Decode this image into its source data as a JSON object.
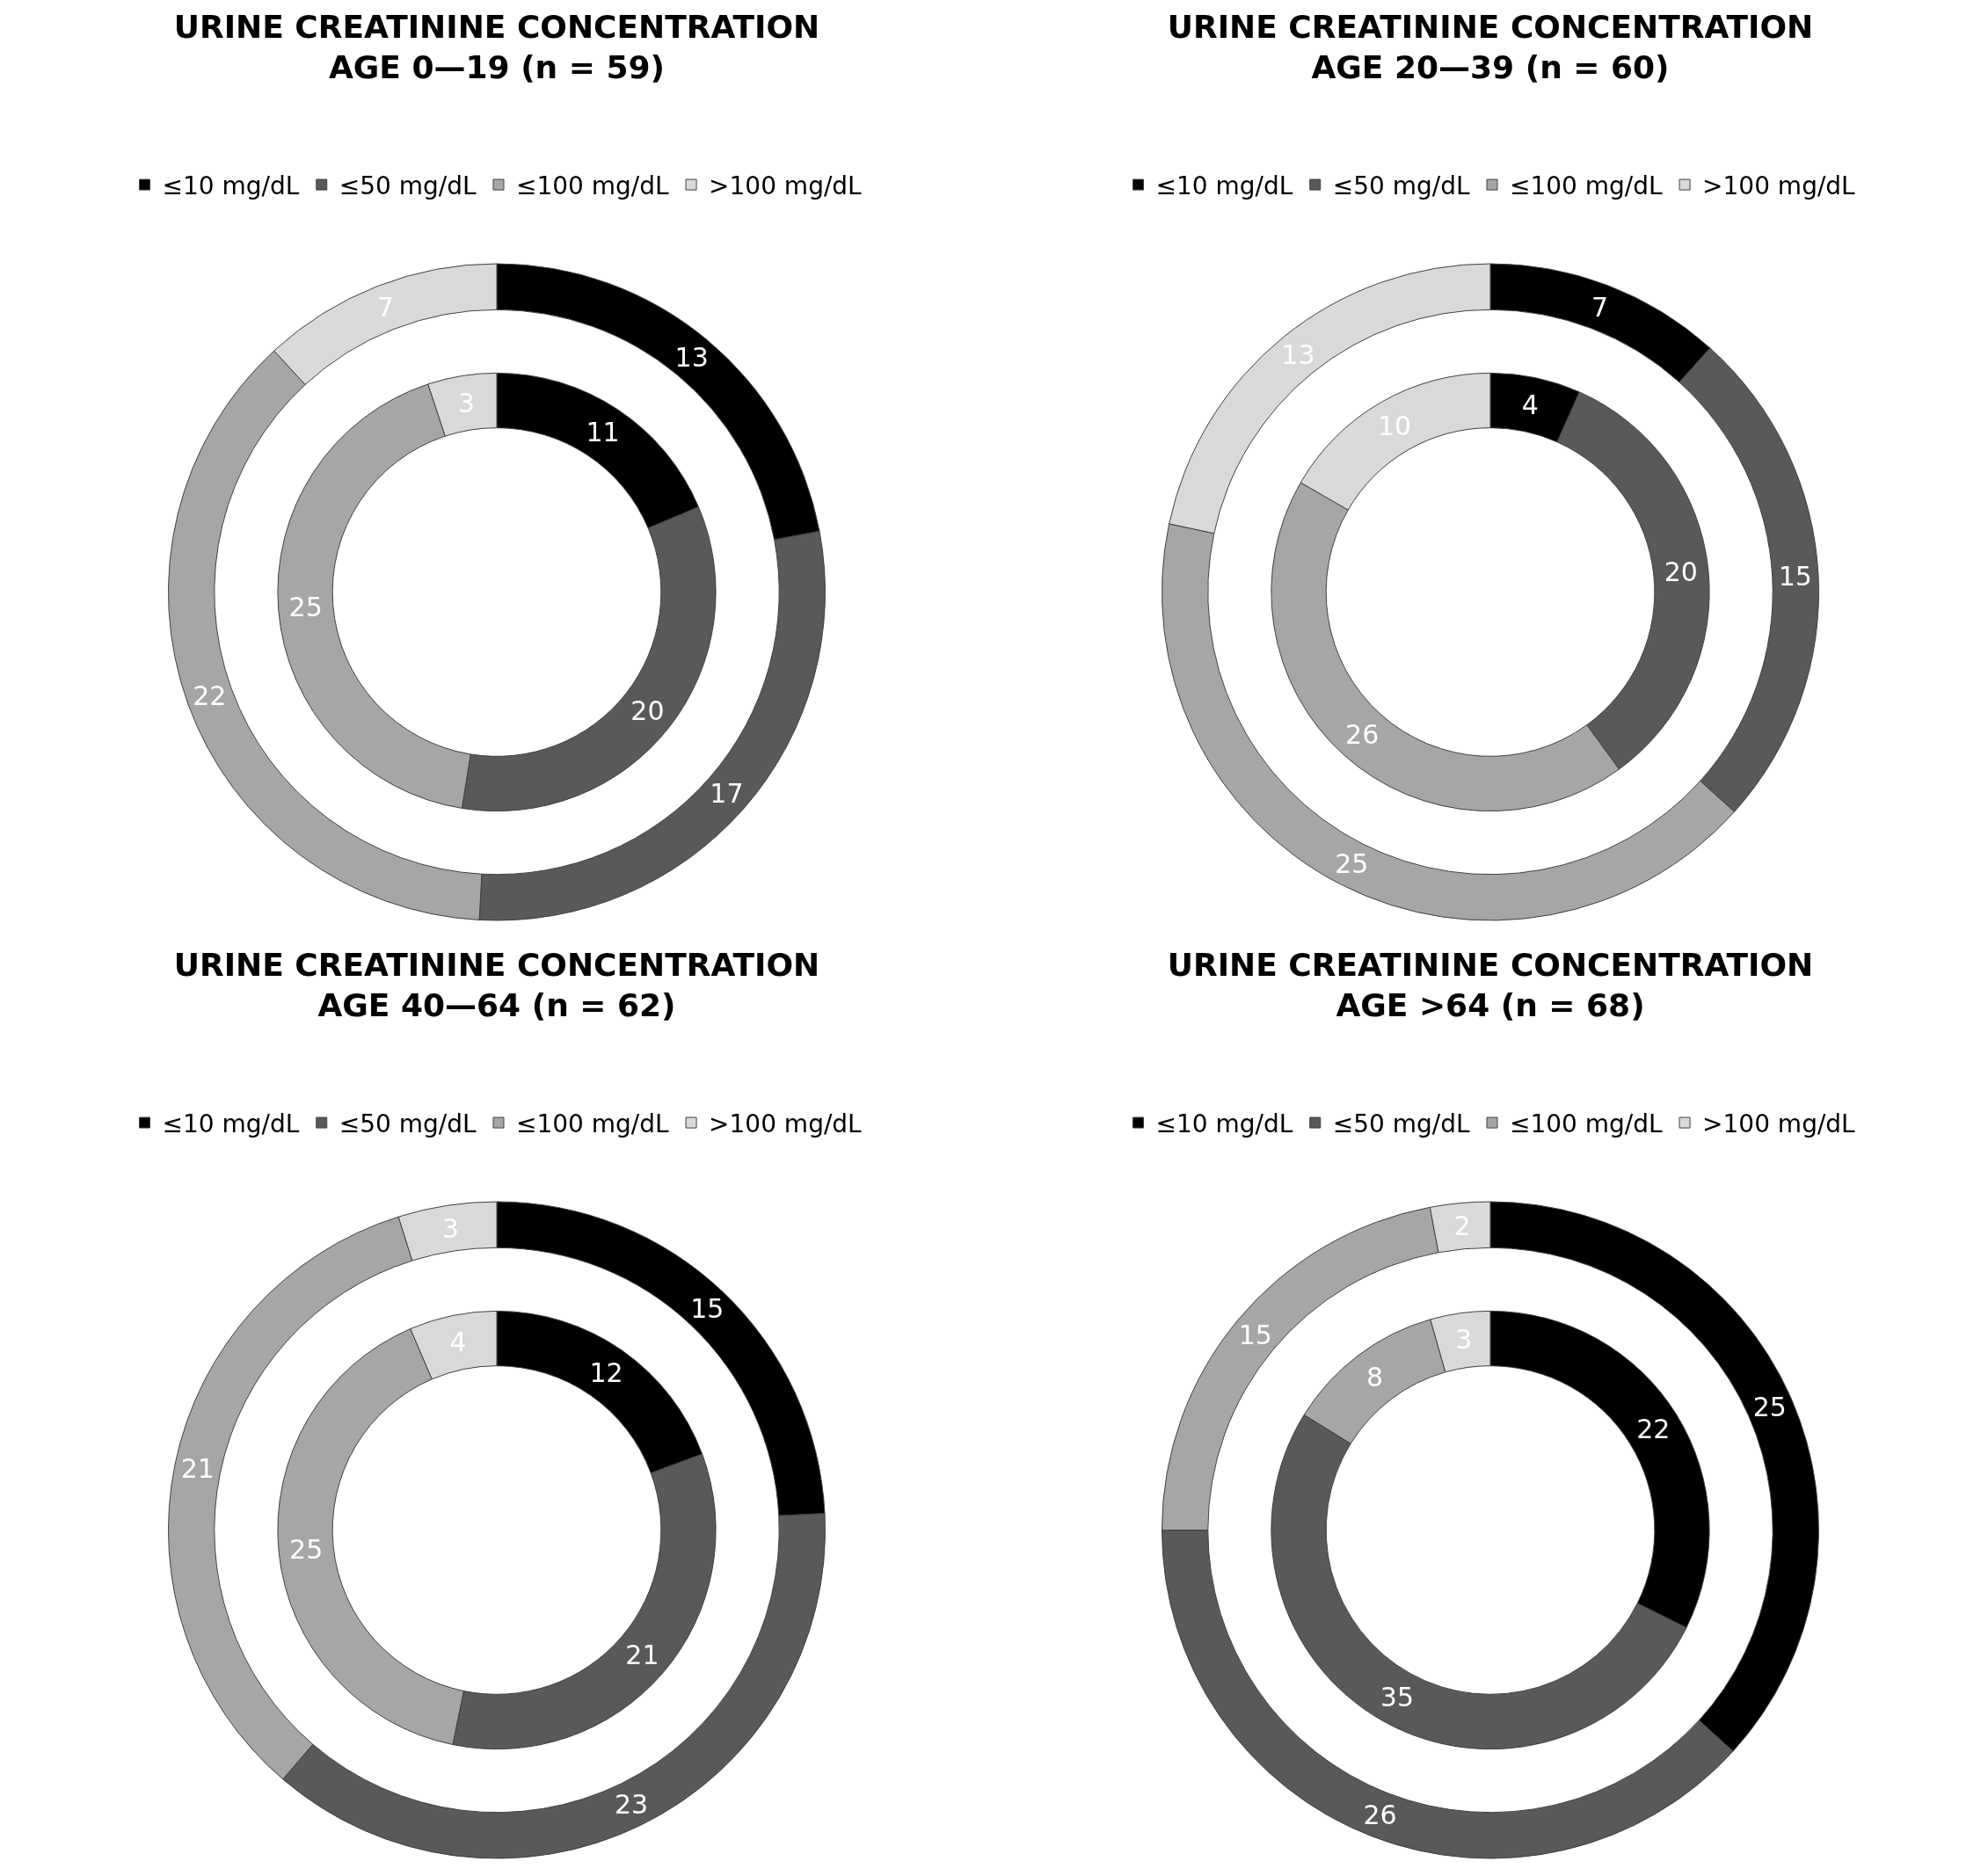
{
  "chart_data": [
    {
      "type": "donut",
      "title": "URINE CREATININE CONCENTRATION\nAGE 0—19 (n = 59)",
      "categories": [
        "≤10 mg/dL",
        "≤50 mg/dL",
        "≤100 mg/dL",
        ">100 mg/dL"
      ],
      "colors": [
        "#000000",
        "#595959",
        "#a6a6a6",
        "#d9d9d9"
      ],
      "legend": "top",
      "data_labels": true,
      "series": [
        {
          "values": [
            11,
            20,
            25,
            3
          ]
        },
        {
          "values": [
            13,
            17,
            22,
            7
          ]
        }
      ]
    },
    {
      "type": "donut",
      "title": "URINE CREATININE CONCENTRATION\nAGE 20—39 (n = 60)",
      "categories": [
        "≤10 mg/dL",
        "≤50 mg/dL",
        "≤100 mg/dL",
        ">100 mg/dL"
      ],
      "colors": [
        "#000000",
        "#595959",
        "#a6a6a6",
        "#d9d9d9"
      ],
      "legend": "top",
      "data_labels": true,
      "series": [
        {
          "values": [
            4,
            20,
            26,
            10
          ]
        },
        {
          "values": [
            7,
            15,
            25,
            13
          ]
        }
      ]
    },
    {
      "type": "donut",
      "title": "URINE CREATININE CONCENTRATION\nAGE 40—64 (n = 62)",
      "categories": [
        "≤10 mg/dL",
        "≤50 mg/dL",
        "≤100 mg/dL",
        ">100 mg/dL"
      ],
      "colors": [
        "#000000",
        "#595959",
        "#a6a6a6",
        "#d9d9d9"
      ],
      "legend": "top",
      "data_labels": true,
      "series": [
        {
          "values": [
            12,
            21,
            25,
            4
          ]
        },
        {
          "values": [
            15,
            23,
            21,
            3
          ]
        }
      ]
    },
    {
      "type": "donut",
      "title": "URINE CREATININE CONCENTRATION\nAGE >64 (n = 68)",
      "categories": [
        "≤10 mg/dL",
        "≤50 mg/dL",
        "≤100 mg/dL",
        ">100 mg/dL"
      ],
      "colors": [
        "#000000",
        "#595959",
        "#a6a6a6",
        "#d9d9d9"
      ],
      "legend": "top",
      "data_labels": true,
      "series": [
        {
          "values": [
            22,
            35,
            8,
            3
          ]
        },
        {
          "values": [
            25,
            26,
            15,
            2
          ]
        }
      ]
    }
  ]
}
